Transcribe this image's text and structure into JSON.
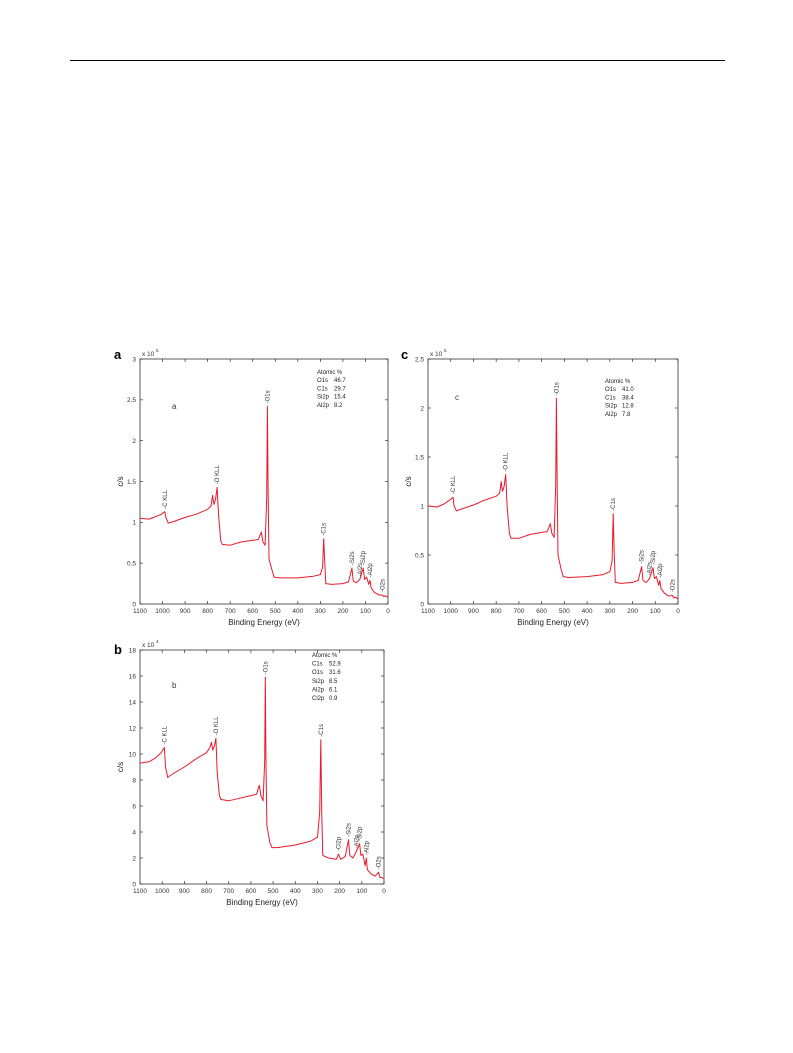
{
  "chart_data": [
    {
      "type": "line",
      "panel_letter": "a",
      "inner_label": "a",
      "xlabel": "Binding Energy (eV)",
      "ylabel": "c/s",
      "y_multiplier": "x 10",
      "y_exponent": "5",
      "xlim": [
        1100,
        0
      ],
      "ylim": [
        0,
        3
      ],
      "x_ticks": [
        "1100",
        "1000",
        "900",
        "800",
        "700",
        "600",
        "500",
        "400",
        "300",
        "200",
        "100",
        "0"
      ],
      "y_ticks": [
        "0",
        "0.5",
        "1",
        "1.5",
        "2",
        "2.5",
        "3"
      ],
      "legend_title": "Atomic %",
      "legend_rows": [
        {
          "element": "O1s",
          "value": "46.7"
        },
        {
          "element": "C1s",
          "value": "29.7"
        },
        {
          "element": "Si2p",
          "value": "15.4"
        },
        {
          "element": "Al2p",
          "value": "8.2"
        }
      ],
      "series": [
        {
          "color": "#e8192c",
          "points": [
            [
              1100,
              1.05
            ],
            [
              1060,
              1.04
            ],
            [
              1030,
              1.07
            ],
            [
              1005,
              1.1
            ],
            [
              990,
              1.13
            ],
            [
              985,
              1.06
            ],
            [
              975,
              0.99
            ],
            [
              950,
              1.01
            ],
            [
              900,
              1.06
            ],
            [
              850,
              1.1
            ],
            [
              800,
              1.16
            ],
            [
              785,
              1.2
            ],
            [
              778,
              1.33
            ],
            [
              772,
              1.22
            ],
            [
              765,
              1.28
            ],
            [
              758,
              1.43
            ],
            [
              752,
              1.1
            ],
            [
              742,
              0.78
            ],
            [
              735,
              0.73
            ],
            [
              700,
              0.72
            ],
            [
              650,
              0.76
            ],
            [
              600,
              0.78
            ],
            [
              575,
              0.79
            ],
            [
              562,
              0.88
            ],
            [
              555,
              0.76
            ],
            [
              545,
              0.72
            ],
            [
              538,
              1.3
            ],
            [
              535,
              2.42
            ],
            [
              532,
              1.4
            ],
            [
              528,
              0.55
            ],
            [
              515,
              0.42
            ],
            [
              505,
              0.33
            ],
            [
              480,
              0.32
            ],
            [
              400,
              0.32
            ],
            [
              330,
              0.34
            ],
            [
              300,
              0.36
            ],
            [
              290,
              0.45
            ],
            [
              285,
              0.8
            ],
            [
              281,
              0.55
            ],
            [
              276,
              0.25
            ],
            [
              250,
              0.24
            ],
            [
              200,
              0.25
            ],
            [
              175,
              0.27
            ],
            [
              160,
              0.44
            ],
            [
              154,
              0.28
            ],
            [
              140,
              0.26
            ],
            [
              125,
              0.3
            ],
            [
              110,
              0.44
            ],
            [
              104,
              0.3
            ],
            [
              95,
              0.33
            ],
            [
              85,
              0.24
            ],
            [
              80,
              0.29
            ],
            [
              75,
              0.2
            ],
            [
              60,
              0.14
            ],
            [
              40,
              0.11
            ],
            [
              25,
              0.11
            ],
            [
              18,
              0.09
            ],
            [
              10,
              0.1
            ],
            [
              0,
              0.08
            ]
          ]
        }
      ],
      "peak_labels": [
        {
          "text": "C KLL",
          "x": 990,
          "y": 1.13
        },
        {
          "text": "O KLL",
          "x": 758,
          "y": 1.43
        },
        {
          "text": "O1s",
          "x": 535,
          "y": 2.42
        },
        {
          "text": "C1s",
          "x": 285,
          "y": 0.8
        },
        {
          "text": "Si2s",
          "x": 160,
          "y": 0.44
        },
        {
          "text": "Al2s",
          "x": 125,
          "y": 0.3
        },
        {
          "text": "Si2p",
          "x": 110,
          "y": 0.44
        },
        {
          "text": "Al2p",
          "x": 80,
          "y": 0.29
        },
        {
          "text": "O2s",
          "x": 25,
          "y": 0.11
        }
      ]
    },
    {
      "type": "line",
      "panel_letter": "c",
      "inner_label": "c",
      "xlabel": "Binding Energy (eV)",
      "ylabel": "c/s",
      "y_multiplier": "x 10",
      "y_exponent": "5",
      "xlim": [
        1100,
        0
      ],
      "ylim": [
        0,
        2.5
      ],
      "x_ticks": [
        "1100",
        "1000",
        "900",
        "800",
        "700",
        "600",
        "500",
        "400",
        "300",
        "200",
        "100",
        "0"
      ],
      "y_ticks": [
        "0",
        "0.5",
        "1",
        "1.5",
        "2",
        "2.5"
      ],
      "legend_title": "Atomic %",
      "legend_rows": [
        {
          "element": "O1s",
          "value": "41.0"
        },
        {
          "element": "C1s",
          "value": "38.4"
        },
        {
          "element": "Si2p",
          "value": "12.8"
        },
        {
          "element": "Al2p",
          "value": "7.8"
        }
      ],
      "series": [
        {
          "color": "#e8192c",
          "points": [
            [
              1100,
              1.0
            ],
            [
              1060,
              0.99
            ],
            [
              1030,
              1.02
            ],
            [
              1005,
              1.06
            ],
            [
              990,
              1.09
            ],
            [
              985,
              1.0
            ],
            [
              975,
              0.95
            ],
            [
              950,
              0.97
            ],
            [
              900,
              1.01
            ],
            [
              850,
              1.06
            ],
            [
              800,
              1.1
            ],
            [
              785,
              1.13
            ],
            [
              778,
              1.25
            ],
            [
              772,
              1.15
            ],
            [
              765,
              1.2
            ],
            [
              758,
              1.32
            ],
            [
              752,
              1.0
            ],
            [
              742,
              0.72
            ],
            [
              735,
              0.67
            ],
            [
              700,
              0.67
            ],
            [
              650,
              0.71
            ],
            [
              600,
              0.73
            ],
            [
              575,
              0.74
            ],
            [
              562,
              0.82
            ],
            [
              555,
              0.72
            ],
            [
              545,
              0.68
            ],
            [
              538,
              1.2
            ],
            [
              535,
              2.1
            ],
            [
              532,
              1.3
            ],
            [
              528,
              0.5
            ],
            [
              515,
              0.36
            ],
            [
              505,
              0.28
            ],
            [
              480,
              0.27
            ],
            [
              400,
              0.28
            ],
            [
              330,
              0.3
            ],
            [
              300,
              0.33
            ],
            [
              290,
              0.44
            ],
            [
              285,
              0.92
            ],
            [
              281,
              0.55
            ],
            [
              276,
              0.22
            ],
            [
              250,
              0.21
            ],
            [
              200,
              0.22
            ],
            [
              175,
              0.24
            ],
            [
              160,
              0.38
            ],
            [
              154,
              0.24
            ],
            [
              140,
              0.22
            ],
            [
              125,
              0.26
            ],
            [
              110,
              0.37
            ],
            [
              104,
              0.26
            ],
            [
              95,
              0.28
            ],
            [
              85,
              0.19
            ],
            [
              80,
              0.24
            ],
            [
              75,
              0.16
            ],
            [
              60,
              0.11
            ],
            [
              40,
              0.08
            ],
            [
              25,
              0.09
            ],
            [
              18,
              0.06
            ],
            [
              10,
              0.07
            ],
            [
              0,
              0.05
            ]
          ]
        }
      ],
      "peak_labels": [
        {
          "text": "C KLL",
          "x": 990,
          "y": 1.09
        },
        {
          "text": "O KLL",
          "x": 758,
          "y": 1.32
        },
        {
          "text": "O1s",
          "x": 535,
          "y": 2.1
        },
        {
          "text": "C1s",
          "x": 285,
          "y": 0.92
        },
        {
          "text": "Si2s",
          "x": 160,
          "y": 0.38
        },
        {
          "text": "Al2s",
          "x": 125,
          "y": 0.26
        },
        {
          "text": "Si2p",
          "x": 110,
          "y": 0.37
        },
        {
          "text": "Al2p",
          "x": 80,
          "y": 0.24
        },
        {
          "text": "O2s",
          "x": 25,
          "y": 0.09
        }
      ]
    },
    {
      "type": "line",
      "panel_letter": "b",
      "inner_label": "b",
      "xlabel": "Binding Energy (eV)",
      "ylabel": "c/s",
      "y_multiplier": "x 10",
      "y_exponent": "4",
      "xlim": [
        1100,
        0
      ],
      "ylim": [
        0,
        18
      ],
      "x_ticks": [
        "1100",
        "1000",
        "900",
        "800",
        "700",
        "600",
        "500",
        "400",
        "300",
        "200",
        "100",
        "0"
      ],
      "y_ticks": [
        "0",
        "2",
        "4",
        "6",
        "8",
        "10",
        "12",
        "14",
        "16",
        "18"
      ],
      "legend_title": "Atomic %",
      "legend_rows": [
        {
          "element": "C1s",
          "value": "52.9"
        },
        {
          "element": "O1s",
          "value": "31.6"
        },
        {
          "element": "Si2p",
          "value": "8.5"
        },
        {
          "element": "Al2p",
          "value": "6.1"
        },
        {
          "element": "Cl2p",
          "value": "0.9"
        }
      ],
      "series": [
        {
          "color": "#e8192c",
          "points": [
            [
              1100,
              9.3
            ],
            [
              1060,
              9.4
            ],
            [
              1030,
              9.7
            ],
            [
              1005,
              10.1
            ],
            [
              990,
              10.5
            ],
            [
              985,
              9.0
            ],
            [
              975,
              8.2
            ],
            [
              950,
              8.5
            ],
            [
              900,
              9.0
            ],
            [
              850,
              9.6
            ],
            [
              800,
              10.1
            ],
            [
              785,
              10.5
            ],
            [
              778,
              10.9
            ],
            [
              772,
              10.3
            ],
            [
              765,
              10.6
            ],
            [
              758,
              11.2
            ],
            [
              752,
              8.6
            ],
            [
              742,
              6.8
            ],
            [
              735,
              6.5
            ],
            [
              700,
              6.4
            ],
            [
              650,
              6.6
            ],
            [
              600,
              6.8
            ],
            [
              575,
              6.9
            ],
            [
              562,
              7.6
            ],
            [
              555,
              6.8
            ],
            [
              545,
              6.4
            ],
            [
              538,
              9.5
            ],
            [
              535,
              15.9
            ],
            [
              532,
              9.2
            ],
            [
              528,
              4.5
            ],
            [
              515,
              3.2
            ],
            [
              505,
              2.8
            ],
            [
              480,
              2.8
            ],
            [
              400,
              3.0
            ],
            [
              330,
              3.3
            ],
            [
              300,
              3.6
            ],
            [
              290,
              5.5
            ],
            [
              285,
              11.1
            ],
            [
              281,
              5.6
            ],
            [
              276,
              2.2
            ],
            [
              250,
              2.0
            ],
            [
              215,
              1.9
            ],
            [
              205,
              2.3
            ],
            [
              195,
              1.9
            ],
            [
              175,
              2.1
            ],
            [
              160,
              3.4
            ],
            [
              154,
              2.2
            ],
            [
              140,
              2.0
            ],
            [
              125,
              2.5
            ],
            [
              110,
              3.1
            ],
            [
              104,
              2.2
            ],
            [
              95,
              2.3
            ],
            [
              85,
              1.4
            ],
            [
              80,
              2.0
            ],
            [
              75,
              1.1
            ],
            [
              60,
              0.8
            ],
            [
              40,
              0.6
            ],
            [
              25,
              0.9
            ],
            [
              18,
              0.5
            ],
            [
              10,
              0.5
            ],
            [
              0,
              0.4
            ]
          ]
        }
      ],
      "peak_labels": [
        {
          "text": "C KLL",
          "x": 990,
          "y": 10.5
        },
        {
          "text": "O KLL",
          "x": 758,
          "y": 11.2
        },
        {
          "text": "O1s",
          "x": 535,
          "y": 15.9
        },
        {
          "text": "C1s",
          "x": 285,
          "y": 11.1
        },
        {
          "text": "Cl2p",
          "x": 205,
          "y": 2.3
        },
        {
          "text": "Si2s",
          "x": 160,
          "y": 3.4
        },
        {
          "text": "Al2s",
          "x": 125,
          "y": 2.5
        },
        {
          "text": "Si2p",
          "x": 110,
          "y": 3.1
        },
        {
          "text": "Al2p",
          "x": 80,
          "y": 2.0
        },
        {
          "text": "O2s",
          "x": 25,
          "y": 0.9
        }
      ]
    }
  ]
}
